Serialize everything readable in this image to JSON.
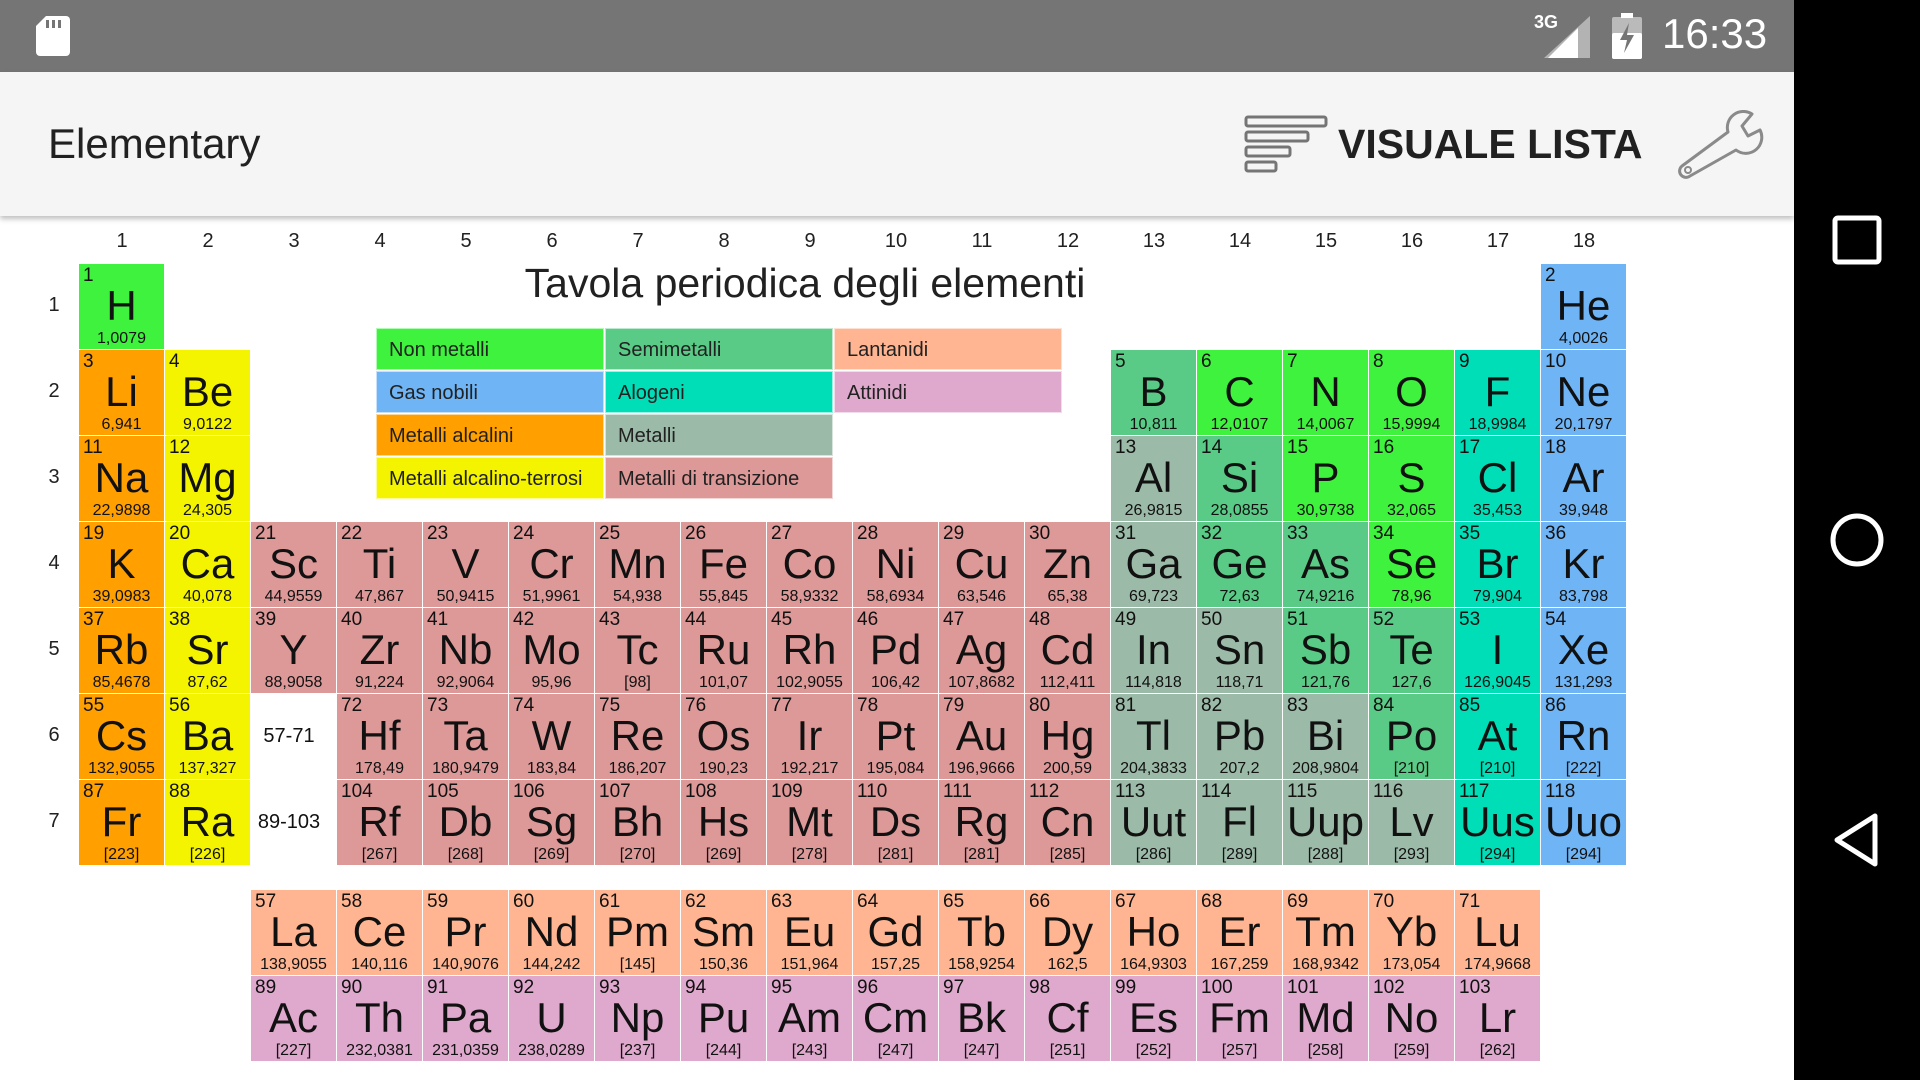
{
  "status_bar": {
    "network": "3G",
    "time": "16:33"
  },
  "app_bar": {
    "title": "Elementary",
    "list_view_label": "VISUALE LISTA"
  },
  "table": {
    "title": "Tavola periodica degli elementi",
    "groups": [
      "1",
      "2",
      "3",
      "4",
      "5",
      "6",
      "7",
      "8",
      "9",
      "10",
      "11",
      "12",
      "13",
      "14",
      "15",
      "16",
      "17",
      "18"
    ],
    "periods": [
      "1",
      "2",
      "3",
      "4",
      "5",
      "6",
      "7"
    ],
    "lanthanide_ref": "57-71",
    "actinide_ref": "89-103"
  },
  "colors": {
    "nonmetal": "#3ef23e",
    "noble": "#6fb4f5",
    "alkali": "#ff9f00",
    "alkaline": "#f4f400",
    "metalloid": "#5acb86",
    "halogen": "#00deb8",
    "post": "#9cbaa8",
    "transition": "#dd9898",
    "lanthanide": "#ffb591",
    "actinide": "#dfa9cd"
  },
  "legend": [
    {
      "label": "Non metalli",
      "cat": "nonmetal"
    },
    {
      "label": "Semimetalli",
      "cat": "metalloid"
    },
    {
      "label": "Lantanidi",
      "cat": "lanthanide"
    },
    {
      "label": "Gas nobili",
      "cat": "noble"
    },
    {
      "label": "Alogeni",
      "cat": "halogen"
    },
    {
      "label": "Attinidi",
      "cat": "actinide"
    },
    {
      "label": "Metalli alcalini",
      "cat": "alkali"
    },
    {
      "label": "Metalli",
      "cat": "post"
    },
    {
      "label": "Metalli alcalino-terrosi",
      "cat": "alkaline"
    },
    {
      "label": "Metalli di transizione",
      "cat": "transition"
    }
  ],
  "elements": [
    {
      "n": "1",
      "s": "H",
      "m": "1,0079",
      "c": "nonmetal",
      "g": 1,
      "p": 1
    },
    {
      "n": "2",
      "s": "He",
      "m": "4,0026",
      "c": "noble",
      "g": 18,
      "p": 1
    },
    {
      "n": "3",
      "s": "Li",
      "m": "6,941",
      "c": "alkali",
      "g": 1,
      "p": 2
    },
    {
      "n": "4",
      "s": "Be",
      "m": "9,0122",
      "c": "alkaline",
      "g": 2,
      "p": 2
    },
    {
      "n": "5",
      "s": "B",
      "m": "10,811",
      "c": "metalloid",
      "g": 13,
      "p": 2
    },
    {
      "n": "6",
      "s": "C",
      "m": "12,0107",
      "c": "nonmetal",
      "g": 14,
      "p": 2
    },
    {
      "n": "7",
      "s": "N",
      "m": "14,0067",
      "c": "nonmetal",
      "g": 15,
      "p": 2
    },
    {
      "n": "8",
      "s": "O",
      "m": "15,9994",
      "c": "nonmetal",
      "g": 16,
      "p": 2
    },
    {
      "n": "9",
      "s": "F",
      "m": "18,9984",
      "c": "halogen",
      "g": 17,
      "p": 2
    },
    {
      "n": "10",
      "s": "Ne",
      "m": "20,1797",
      "c": "noble",
      "g": 18,
      "p": 2
    },
    {
      "n": "11",
      "s": "Na",
      "m": "22,9898",
      "c": "alkali",
      "g": 1,
      "p": 3
    },
    {
      "n": "12",
      "s": "Mg",
      "m": "24,305",
      "c": "alkaline",
      "g": 2,
      "p": 3
    },
    {
      "n": "13",
      "s": "Al",
      "m": "26,9815",
      "c": "post",
      "g": 13,
      "p": 3
    },
    {
      "n": "14",
      "s": "Si",
      "m": "28,0855",
      "c": "metalloid",
      "g": 14,
      "p": 3
    },
    {
      "n": "15",
      "s": "P",
      "m": "30,9738",
      "c": "nonmetal",
      "g": 15,
      "p": 3
    },
    {
      "n": "16",
      "s": "S",
      "m": "32,065",
      "c": "nonmetal",
      "g": 16,
      "p": 3
    },
    {
      "n": "17",
      "s": "Cl",
      "m": "35,453",
      "c": "halogen",
      "g": 17,
      "p": 3
    },
    {
      "n": "18",
      "s": "Ar",
      "m": "39,948",
      "c": "noble",
      "g": 18,
      "p": 3
    },
    {
      "n": "19",
      "s": "K",
      "m": "39,0983",
      "c": "alkali",
      "g": 1,
      "p": 4
    },
    {
      "n": "20",
      "s": "Ca",
      "m": "40,078",
      "c": "alkaline",
      "g": 2,
      "p": 4
    },
    {
      "n": "21",
      "s": "Sc",
      "m": "44,9559",
      "c": "transition",
      "g": 3,
      "p": 4
    },
    {
      "n": "22",
      "s": "Ti",
      "m": "47,867",
      "c": "transition",
      "g": 4,
      "p": 4
    },
    {
      "n": "23",
      "s": "V",
      "m": "50,9415",
      "c": "transition",
      "g": 5,
      "p": 4
    },
    {
      "n": "24",
      "s": "Cr",
      "m": "51,9961",
      "c": "transition",
      "g": 6,
      "p": 4
    },
    {
      "n": "25",
      "s": "Mn",
      "m": "54,938",
      "c": "transition",
      "g": 7,
      "p": 4
    },
    {
      "n": "26",
      "s": "Fe",
      "m": "55,845",
      "c": "transition",
      "g": 8,
      "p": 4
    },
    {
      "n": "27",
      "s": "Co",
      "m": "58,9332",
      "c": "transition",
      "g": 9,
      "p": 4
    },
    {
      "n": "28",
      "s": "Ni",
      "m": "58,6934",
      "c": "transition",
      "g": 10,
      "p": 4
    },
    {
      "n": "29",
      "s": "Cu",
      "m": "63,546",
      "c": "transition",
      "g": 11,
      "p": 4
    },
    {
      "n": "30",
      "s": "Zn",
      "m": "65,38",
      "c": "transition",
      "g": 12,
      "p": 4
    },
    {
      "n": "31",
      "s": "Ga",
      "m": "69,723",
      "c": "post",
      "g": 13,
      "p": 4
    },
    {
      "n": "32",
      "s": "Ge",
      "m": "72,63",
      "c": "metalloid",
      "g": 14,
      "p": 4
    },
    {
      "n": "33",
      "s": "As",
      "m": "74,9216",
      "c": "metalloid",
      "g": 15,
      "p": 4
    },
    {
      "n": "34",
      "s": "Se",
      "m": "78,96",
      "c": "nonmetal",
      "g": 16,
      "p": 4
    },
    {
      "n": "35",
      "s": "Br",
      "m": "79,904",
      "c": "halogen",
      "g": 17,
      "p": 4
    },
    {
      "n": "36",
      "s": "Kr",
      "m": "83,798",
      "c": "noble",
      "g": 18,
      "p": 4
    },
    {
      "n": "37",
      "s": "Rb",
      "m": "85,4678",
      "c": "alkali",
      "g": 1,
      "p": 5
    },
    {
      "n": "38",
      "s": "Sr",
      "m": "87,62",
      "c": "alkaline",
      "g": 2,
      "p": 5
    },
    {
      "n": "39",
      "s": "Y",
      "m": "88,9058",
      "c": "transition",
      "g": 3,
      "p": 5
    },
    {
      "n": "40",
      "s": "Zr",
      "m": "91,224",
      "c": "transition",
      "g": 4,
      "p": 5
    },
    {
      "n": "41",
      "s": "Nb",
      "m": "92,9064",
      "c": "transition",
      "g": 5,
      "p": 5
    },
    {
      "n": "42",
      "s": "Mo",
      "m": "95,96",
      "c": "transition",
      "g": 6,
      "p": 5
    },
    {
      "n": "43",
      "s": "Tc",
      "m": "[98]",
      "c": "transition",
      "g": 7,
      "p": 5
    },
    {
      "n": "44",
      "s": "Ru",
      "m": "101,07",
      "c": "transition",
      "g": 8,
      "p": 5
    },
    {
      "n": "45",
      "s": "Rh",
      "m": "102,9055",
      "c": "transition",
      "g": 9,
      "p": 5
    },
    {
      "n": "46",
      "s": "Pd",
      "m": "106,42",
      "c": "transition",
      "g": 10,
      "p": 5
    },
    {
      "n": "47",
      "s": "Ag",
      "m": "107,8682",
      "c": "transition",
      "g": 11,
      "p": 5
    },
    {
      "n": "48",
      "s": "Cd",
      "m": "112,411",
      "c": "transition",
      "g": 12,
      "p": 5
    },
    {
      "n": "49",
      "s": "In",
      "m": "114,818",
      "c": "post",
      "g": 13,
      "p": 5
    },
    {
      "n": "50",
      "s": "Sn",
      "m": "118,71",
      "c": "post",
      "g": 14,
      "p": 5
    },
    {
      "n": "51",
      "s": "Sb",
      "m": "121,76",
      "c": "metalloid",
      "g": 15,
      "p": 5
    },
    {
      "n": "52",
      "s": "Te",
      "m": "127,6",
      "c": "metalloid",
      "g": 16,
      "p": 5
    },
    {
      "n": "53",
      "s": "I",
      "m": "126,9045",
      "c": "halogen",
      "g": 17,
      "p": 5
    },
    {
      "n": "54",
      "s": "Xe",
      "m": "131,293",
      "c": "noble",
      "g": 18,
      "p": 5
    },
    {
      "n": "55",
      "s": "Cs",
      "m": "132,9055",
      "c": "alkali",
      "g": 1,
      "p": 6
    },
    {
      "n": "56",
      "s": "Ba",
      "m": "137,327",
      "c": "alkaline",
      "g": 2,
      "p": 6
    },
    {
      "n": "72",
      "s": "Hf",
      "m": "178,49",
      "c": "transition",
      "g": 4,
      "p": 6
    },
    {
      "n": "73",
      "s": "Ta",
      "m": "180,9479",
      "c": "transition",
      "g": 5,
      "p": 6
    },
    {
      "n": "74",
      "s": "W",
      "m": "183,84",
      "c": "transition",
      "g": 6,
      "p": 6
    },
    {
      "n": "75",
      "s": "Re",
      "m": "186,207",
      "c": "transition",
      "g": 7,
      "p": 6
    },
    {
      "n": "76",
      "s": "Os",
      "m": "190,23",
      "c": "transition",
      "g": 8,
      "p": 6
    },
    {
      "n": "77",
      "s": "Ir",
      "m": "192,217",
      "c": "transition",
      "g": 9,
      "p": 6
    },
    {
      "n": "78",
      "s": "Pt",
      "m": "195,084",
      "c": "transition",
      "g": 10,
      "p": 6
    },
    {
      "n": "79",
      "s": "Au",
      "m": "196,9666",
      "c": "transition",
      "g": 11,
      "p": 6
    },
    {
      "n": "80",
      "s": "Hg",
      "m": "200,59",
      "c": "transition",
      "g": 12,
      "p": 6
    },
    {
      "n": "81",
      "s": "Tl",
      "m": "204,3833",
      "c": "post",
      "g": 13,
      "p": 6
    },
    {
      "n": "82",
      "s": "Pb",
      "m": "207,2",
      "c": "post",
      "g": 14,
      "p": 6
    },
    {
      "n": "83",
      "s": "Bi",
      "m": "208,9804",
      "c": "post",
      "g": 15,
      "p": 6
    },
    {
      "n": "84",
      "s": "Po",
      "m": "[210]",
      "c": "metalloid",
      "g": 16,
      "p": 6
    },
    {
      "n": "85",
      "s": "At",
      "m": "[210]",
      "c": "halogen",
      "g": 17,
      "p": 6
    },
    {
      "n": "86",
      "s": "Rn",
      "m": "[222]",
      "c": "noble",
      "g": 18,
      "p": 6
    },
    {
      "n": "87",
      "s": "Fr",
      "m": "[223]",
      "c": "alkali",
      "g": 1,
      "p": 7
    },
    {
      "n": "88",
      "s": "Ra",
      "m": "[226]",
      "c": "alkaline",
      "g": 2,
      "p": 7
    },
    {
      "n": "104",
      "s": "Rf",
      "m": "[267]",
      "c": "transition",
      "g": 4,
      "p": 7
    },
    {
      "n": "105",
      "s": "Db",
      "m": "[268]",
      "c": "transition",
      "g": 5,
      "p": 7
    },
    {
      "n": "106",
      "s": "Sg",
      "m": "[269]",
      "c": "transition",
      "g": 6,
      "p": 7
    },
    {
      "n": "107",
      "s": "Bh",
      "m": "[270]",
      "c": "transition",
      "g": 7,
      "p": 7
    },
    {
      "n": "108",
      "s": "Hs",
      "m": "[269]",
      "c": "transition",
      "g": 8,
      "p": 7
    },
    {
      "n": "109",
      "s": "Mt",
      "m": "[278]",
      "c": "transition",
      "g": 9,
      "p": 7
    },
    {
      "n": "110",
      "s": "Ds",
      "m": "[281]",
      "c": "transition",
      "g": 10,
      "p": 7
    },
    {
      "n": "111",
      "s": "Rg",
      "m": "[281]",
      "c": "transition",
      "g": 11,
      "p": 7
    },
    {
      "n": "112",
      "s": "Cn",
      "m": "[285]",
      "c": "transition",
      "g": 12,
      "p": 7
    },
    {
      "n": "113",
      "s": "Uut",
      "m": "[286]",
      "c": "post",
      "g": 13,
      "p": 7
    },
    {
      "n": "114",
      "s": "Fl",
      "m": "[289]",
      "c": "post",
      "g": 14,
      "p": 7
    },
    {
      "n": "115",
      "s": "Uup",
      "m": "[288]",
      "c": "post",
      "g": 15,
      "p": 7
    },
    {
      "n": "116",
      "s": "Lv",
      "m": "[293]",
      "c": "post",
      "g": 16,
      "p": 7
    },
    {
      "n": "117",
      "s": "Uus",
      "m": "[294]",
      "c": "halogen",
      "g": 17,
      "p": 7
    },
    {
      "n": "118",
      "s": "Uuo",
      "m": "[294]",
      "c": "noble",
      "g": 18,
      "p": 7
    },
    {
      "n": "57",
      "s": "La",
      "m": "138,9055",
      "c": "lanthanide",
      "g": 3,
      "p": 8
    },
    {
      "n": "58",
      "s": "Ce",
      "m": "140,116",
      "c": "lanthanide",
      "g": 4,
      "p": 8
    },
    {
      "n": "59",
      "s": "Pr",
      "m": "140,9076",
      "c": "lanthanide",
      "g": 5,
      "p": 8
    },
    {
      "n": "60",
      "s": "Nd",
      "m": "144,242",
      "c": "lanthanide",
      "g": 6,
      "p": 8
    },
    {
      "n": "61",
      "s": "Pm",
      "m": "[145]",
      "c": "lanthanide",
      "g": 7,
      "p": 8
    },
    {
      "n": "62",
      "s": "Sm",
      "m": "150,36",
      "c": "lanthanide",
      "g": 8,
      "p": 8
    },
    {
      "n": "63",
      "s": "Eu",
      "m": "151,964",
      "c": "lanthanide",
      "g": 9,
      "p": 8
    },
    {
      "n": "64",
      "s": "Gd",
      "m": "157,25",
      "c": "lanthanide",
      "g": 10,
      "p": 8
    },
    {
      "n": "65",
      "s": "Tb",
      "m": "158,9254",
      "c": "lanthanide",
      "g": 11,
      "p": 8
    },
    {
      "n": "66",
      "s": "Dy",
      "m": "162,5",
      "c": "lanthanide",
      "g": 12,
      "p": 8
    },
    {
      "n": "67",
      "s": "Ho",
      "m": "164,9303",
      "c": "lanthanide",
      "g": 13,
      "p": 8
    },
    {
      "n": "68",
      "s": "Er",
      "m": "167,259",
      "c": "lanthanide",
      "g": 14,
      "p": 8
    },
    {
      "n": "69",
      "s": "Tm",
      "m": "168,9342",
      "c": "lanthanide",
      "g": 15,
      "p": 8
    },
    {
      "n": "70",
      "s": "Yb",
      "m": "173,054",
      "c": "lanthanide",
      "g": 16,
      "p": 8
    },
    {
      "n": "71",
      "s": "Lu",
      "m": "174,9668",
      "c": "lanthanide",
      "g": 17,
      "p": 8
    },
    {
      "n": "89",
      "s": "Ac",
      "m": "[227]",
      "c": "actinide",
      "g": 3,
      "p": 9
    },
    {
      "n": "90",
      "s": "Th",
      "m": "232,0381",
      "c": "actinide",
      "g": 4,
      "p": 9
    },
    {
      "n": "91",
      "s": "Pa",
      "m": "231,0359",
      "c": "actinide",
      "g": 5,
      "p": 9
    },
    {
      "n": "92",
      "s": "U",
      "m": "238,0289",
      "c": "actinide",
      "g": 6,
      "p": 9
    },
    {
      "n": "93",
      "s": "Np",
      "m": "[237]",
      "c": "actinide",
      "g": 7,
      "p": 9
    },
    {
      "n": "94",
      "s": "Pu",
      "m": "[244]",
      "c": "actinide",
      "g": 8,
      "p": 9
    },
    {
      "n": "95",
      "s": "Am",
      "m": "[243]",
      "c": "actinide",
      "g": 9,
      "p": 9
    },
    {
      "n": "96",
      "s": "Cm",
      "m": "[247]",
      "c": "actinide",
      "g": 10,
      "p": 9
    },
    {
      "n": "97",
      "s": "Bk",
      "m": "[247]",
      "c": "actinide",
      "g": 11,
      "p": 9
    },
    {
      "n": "98",
      "s": "Cf",
      "m": "[251]",
      "c": "actinide",
      "g": 12,
      "p": 9
    },
    {
      "n": "99",
      "s": "Es",
      "m": "[252]",
      "c": "actinide",
      "g": 13,
      "p": 9
    },
    {
      "n": "100",
      "s": "Fm",
      "m": "[257]",
      "c": "actinide",
      "g": 14,
      "p": 9
    },
    {
      "n": "101",
      "s": "Md",
      "m": "[258]",
      "c": "actinide",
      "g": 15,
      "p": 9
    },
    {
      "n": "102",
      "s": "No",
      "m": "[259]",
      "c": "actinide",
      "g": 16,
      "p": 9
    },
    {
      "n": "103",
      "s": "Lr",
      "m": "[262]",
      "c": "actinide",
      "g": 17,
      "p": 9
    }
  ]
}
